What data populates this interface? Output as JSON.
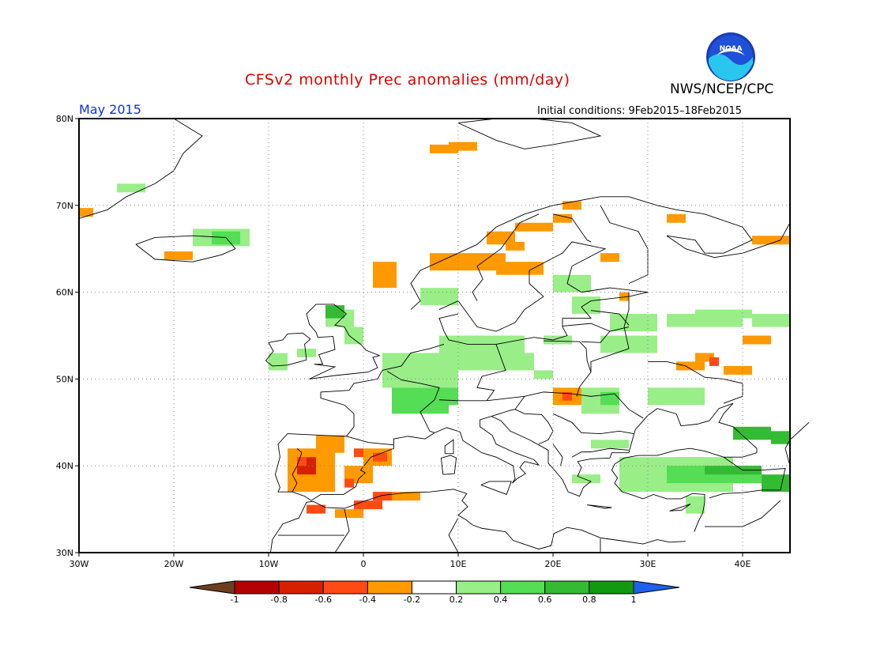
{
  "title": "CFSv2 monthly Prec anomalies (mm/day)",
  "agency": "NWS/NCEP/CPC",
  "logo_text": "NOAA",
  "month_label": "May 2015",
  "initial_conditions": "Initial conditions: 9Feb2015–18Feb2015",
  "map": {
    "region": "Europe",
    "lon_range": [
      -30,
      45
    ],
    "lat_range": [
      30,
      80
    ],
    "grid": "dotted",
    "lat_labels": [
      "80N",
      "70N",
      "60N",
      "50N",
      "40N",
      "30N"
    ],
    "lon_labels": [
      "30W",
      "20W",
      "10W",
      "0",
      "10E",
      "20E",
      "30E",
      "40E"
    ]
  },
  "colorbar": {
    "tick_labels": [
      "-1",
      "-0.8",
      "-0.6",
      "-0.4",
      "-0.2",
      "0.2",
      "0.4",
      "0.6",
      "0.8",
      "1"
    ],
    "colors": [
      "#6b3f1f",
      "#b30000",
      "#d62000",
      "#ff4a14",
      "#ff9900",
      "#ffffff",
      "#99ee88",
      "#55dd55",
      "#33bb33",
      "#119911",
      "#2060ee"
    ]
  },
  "colors": {
    "title": "#e00000",
    "month": "#1030e0",
    "land_outline": "#000000",
    "grid": "#888888"
  }
}
